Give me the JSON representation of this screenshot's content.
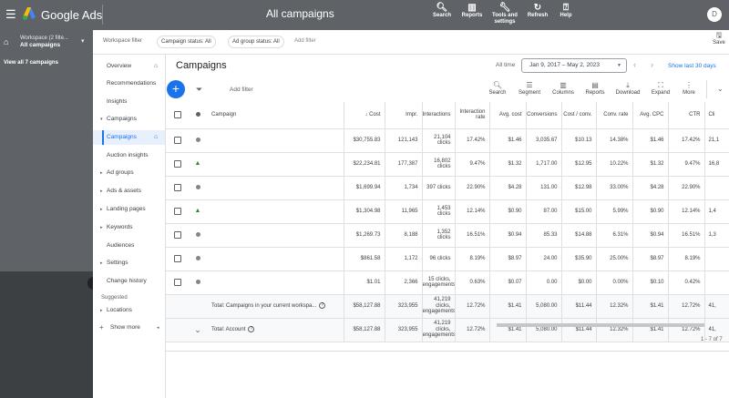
{
  "topbar": {
    "brand": "Google Ads",
    "page_title": "All campaigns",
    "nav": [
      {
        "label": "Search",
        "icon": "search-icon"
      },
      {
        "label": "Reports",
        "icon": "reports-icon"
      },
      {
        "label": "Tools and settings",
        "icon": "wrench-icon"
      },
      {
        "label": "Refresh",
        "icon": "refresh-icon"
      },
      {
        "label": "Help",
        "icon": "help-icon"
      }
    ],
    "avatar": "D"
  },
  "workspace": {
    "line1": "Workspace (2 filte...",
    "line2": "All campaigns",
    "view_all": "View all 7 campaigns"
  },
  "filterbar": {
    "label": "Workspace filter",
    "chips": [
      "Campaign status: All",
      "Ad group status: All"
    ],
    "add_filter": "Add filter",
    "save": "Save"
  },
  "nav": {
    "items": [
      {
        "label": "Overview",
        "arrow": "",
        "home": true
      },
      {
        "label": "Recommendations",
        "arrow": "",
        "home": false
      },
      {
        "label": "Insights",
        "arrow": "",
        "home": false
      },
      {
        "label": "Campaigns",
        "arrow": "▾",
        "home": false
      },
      {
        "label": "Campaigns",
        "arrow": "",
        "home": true,
        "active": true
      },
      {
        "label": "Auction insights",
        "arrow": "",
        "home": false
      },
      {
        "label": "Ad groups",
        "arrow": "▸",
        "home": false
      },
      {
        "label": "Ads & assets",
        "arrow": "▸",
        "home": false
      },
      {
        "label": "Landing pages",
        "arrow": "▸",
        "home": false
      },
      {
        "label": "Keywords",
        "arrow": "▸",
        "home": false
      },
      {
        "label": "Audiences",
        "arrow": "",
        "home": false
      },
      {
        "label": "Settings",
        "arrow": "▸",
        "home": false
      },
      {
        "label": "Change history",
        "arrow": "",
        "home": false
      }
    ],
    "suggested": "Suggested",
    "locations": "Locations",
    "show_more": "Show more"
  },
  "main": {
    "title": "Campaigns",
    "all_time": "All time",
    "date_range": "Jan 9, 2017 – May 2, 2023",
    "show_last": "Show last 30 days",
    "add_filter": "Add filter",
    "tools": [
      "Search",
      "Segment",
      "Columns",
      "Reports",
      "Download",
      "Expand",
      "More"
    ],
    "pager": "1 - 7 of 7"
  },
  "table": {
    "headers": {
      "campaign": "Campaign",
      "cost": "Cost",
      "impr": "Impr.",
      "interactions": "Interactions",
      "interaction_rate": "Interaction rate",
      "avg_cost": "Avg. cost",
      "conversions": "Conversions",
      "cost_conv": "Cost / conv.",
      "conv_rate": "Conv. rate",
      "avg_cpc": "Avg. CPC",
      "ctr": "CTR",
      "clicks": "Cli"
    },
    "rows": [
      {
        "status": "dot",
        "cost": "$30,755.83",
        "impr": "121,143",
        "interactions": "21,104 clicks",
        "interaction_rate": "17.42%",
        "avg_cost": "$1.46",
        "conversions": "3,035.67",
        "cost_conv": "$10.13",
        "conv_rate": "14.38%",
        "avg_cpc": "$1.46",
        "ctr": "17.42%",
        "clicks": "21,1"
      },
      {
        "status": "pin",
        "cost": "$22,234.81",
        "impr": "177,387",
        "interactions": "16,802 clicks",
        "interaction_rate": "9.47%",
        "avg_cost": "$1.32",
        "conversions": "1,717.00",
        "cost_conv": "$12.95",
        "conv_rate": "10.22%",
        "avg_cpc": "$1.32",
        "ctr": "9.47%",
        "clicks": "16,8"
      },
      {
        "status": "dot",
        "cost": "$1,699.94",
        "impr": "1,734",
        "interactions": "397 clicks",
        "interaction_rate": "22.90%",
        "avg_cost": "$4.28",
        "conversions": "131.00",
        "cost_conv": "$12.98",
        "conv_rate": "33.00%",
        "avg_cpc": "$4.28",
        "ctr": "22.90%",
        "clicks": ""
      },
      {
        "status": "pin",
        "cost": "$1,304.98",
        "impr": "11,965",
        "interactions": "1,453 clicks",
        "interaction_rate": "12.14%",
        "avg_cost": "$0.90",
        "conversions": "87.00",
        "cost_conv": "$15.00",
        "conv_rate": "5.99%",
        "avg_cpc": "$0.90",
        "ctr": "12.14%",
        "clicks": "1,4"
      },
      {
        "status": "dot",
        "cost": "$1,269.73",
        "impr": "8,188",
        "interactions": "1,352 clicks",
        "interaction_rate": "16.51%",
        "avg_cost": "$0.94",
        "conversions": "85.33",
        "cost_conv": "$14.88",
        "conv_rate": "6.31%",
        "avg_cpc": "$0.94",
        "ctr": "16.51%",
        "clicks": "1,3"
      },
      {
        "status": "dot",
        "cost": "$861.58",
        "impr": "1,172",
        "interactions": "96 clicks",
        "interaction_rate": "8.19%",
        "avg_cost": "$8.97",
        "conversions": "24.00",
        "cost_conv": "$35.90",
        "conv_rate": "25.00%",
        "avg_cpc": "$8.97",
        "ctr": "8.19%",
        "clicks": ""
      },
      {
        "status": "dot",
        "cost": "$1.01",
        "impr": "2,366",
        "interactions": "15 clicks, engagements",
        "interaction_rate": "0.63%",
        "avg_cost": "$0.07",
        "conversions": "0.00",
        "cost_conv": "$0.00",
        "conv_rate": "0.00%",
        "avg_cpc": "$0.10",
        "ctr": "0.42%",
        "clicks": ""
      }
    ],
    "totals": [
      {
        "label": "Total: Campaigns in your current workspa...",
        "cost": "$58,127.88",
        "impr": "323,955",
        "interactions": "41,219 clicks, engagements",
        "interaction_rate": "12.72%",
        "avg_cost": "$1.41",
        "conversions": "5,080.00",
        "cost_conv": "$11.44",
        "conv_rate": "12.32%",
        "avg_cpc": "$1.41",
        "ctr": "12.72%",
        "clicks": "41,"
      },
      {
        "label": "Total: Account",
        "cost": "$58,127.88",
        "impr": "323,955",
        "interactions": "41,219 clicks, engagements",
        "interaction_rate": "12.72%",
        "avg_cost": "$1.41",
        "conversions": "5,080.00",
        "cost_conv": "$11.44",
        "conv_rate": "12.32%",
        "avg_cpc": "$1.41",
        "ctr": "12.72%",
        "clicks": "41,"
      }
    ]
  }
}
